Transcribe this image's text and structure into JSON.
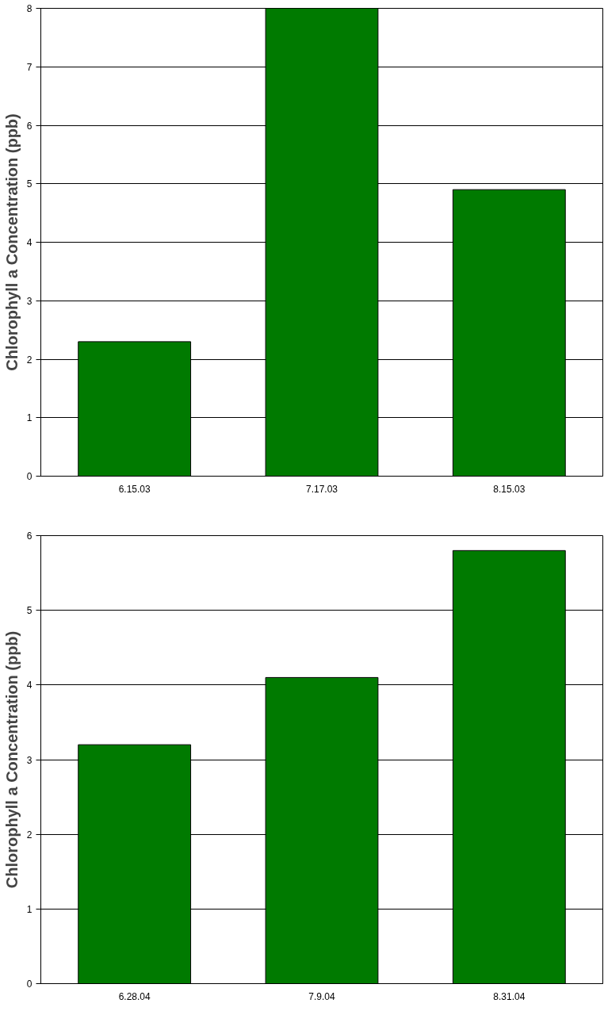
{
  "chart_data": [
    {
      "type": "bar",
      "ylabel": "Chlorophyll a Concentration (ppb)",
      "categories": [
        "6.15.03",
        "7.17.03",
        "8.15.03"
      ],
      "values": [
        2.3,
        8.0,
        4.9
      ],
      "color": "#007a00",
      "ylim": [
        0,
        8
      ],
      "yticks": [
        0,
        1,
        2,
        3,
        4,
        5,
        6,
        7,
        8
      ],
      "grid": "y"
    },
    {
      "type": "bar",
      "ylabel": "Chlorophyll a Concentration (ppb)",
      "categories": [
        "6.28.04",
        "7.9.04",
        "8.31.04"
      ],
      "values": [
        3.2,
        4.1,
        5.8
      ],
      "color": "#007a00",
      "ylim": [
        0,
        6
      ],
      "yticks": [
        0,
        1,
        2,
        3,
        4,
        5,
        6
      ],
      "grid": "y"
    }
  ]
}
